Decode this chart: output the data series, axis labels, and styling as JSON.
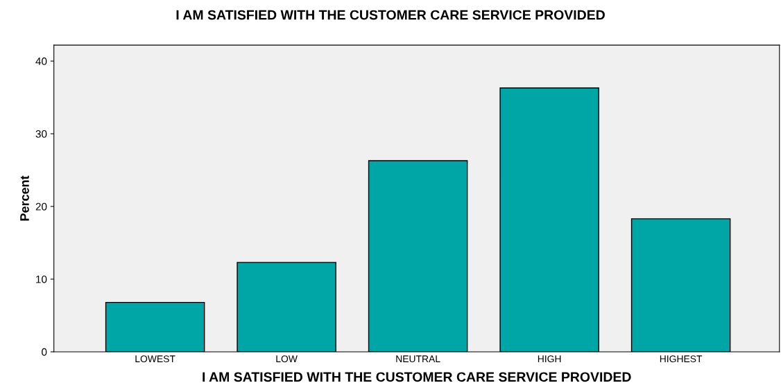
{
  "chart_data": {
    "type": "bar",
    "title": "I AM SATISFIED WITH THE CUSTOMER CARE SERVICE PROVIDED",
    "xlabel": "I AM SATISFIED WITH THE CUSTOMER CARE SERVICE PROVIDED",
    "ylabel": "Percent",
    "categories": [
      "LOWEST",
      "LOW",
      "NEUTRAL",
      "HIGH",
      "HIGHEST"
    ],
    "values": [
      6.8,
      12.3,
      26.3,
      36.3,
      18.3
    ],
    "color": "#00a5a5",
    "ylim": [
      0,
      42.2
    ],
    "yticks": [
      0,
      10,
      20,
      30,
      40
    ],
    "grid": false
  }
}
